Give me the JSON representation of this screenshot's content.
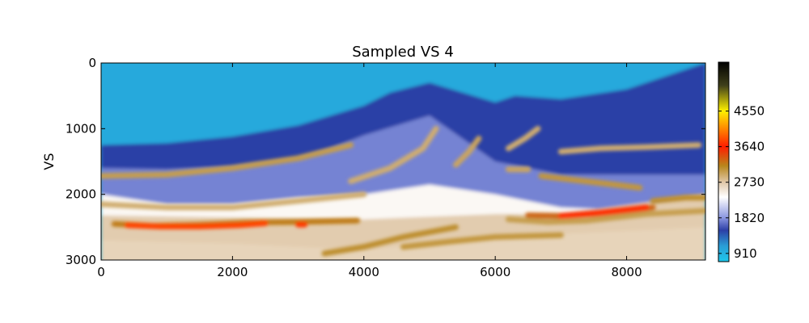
{
  "chart_data": {
    "type": "heatmap",
    "title": "Sampled VS 4",
    "xlabel": "",
    "ylabel": "VS",
    "xlim": [
      0,
      9200
    ],
    "ylim": [
      3000,
      0
    ],
    "x_ticks": [
      0,
      2000,
      4000,
      6000,
      8000
    ],
    "y_ticks": [
      0,
      1000,
      2000,
      3000
    ],
    "colorbar": {
      "range": [
        700,
        5800
      ],
      "ticks": [
        910,
        1820,
        2730,
        3640,
        4550
      ],
      "colormap": [
        {
          "value": 700,
          "color": "#1ec8ec"
        },
        {
          "value": 1100,
          "color": "#2a9ed6"
        },
        {
          "value": 1500,
          "color": "#2c3fa6"
        },
        {
          "value": 1820,
          "color": "#8a96e0"
        },
        {
          "value": 2350,
          "color": "#ffffff"
        },
        {
          "value": 2730,
          "color": "#e0c8a8"
        },
        {
          "value": 3150,
          "color": "#b8861c"
        },
        {
          "value": 3640,
          "color": "#ff1e00"
        },
        {
          "value": 4550,
          "color": "#fff000"
        },
        {
          "value": 5200,
          "color": "#40401a"
        },
        {
          "value": 5800,
          "color": "#000000"
        }
      ]
    },
    "layers": [
      {
        "x": [
          0,
          2000,
          4000,
          4400,
          5000,
          6000,
          7000,
          9200
        ],
        "y_top": [
          0,
          0,
          0,
          0,
          0,
          0,
          0,
          0
        ],
        "value": 1000
      },
      {
        "x": [
          0,
          1000,
          2000,
          3000,
          4000,
          4400,
          5000,
          6000,
          6300,
          7000,
          8000,
          9200
        ],
        "y_top": [
          1250,
          1220,
          1120,
          950,
          650,
          450,
          300,
          600,
          500,
          550,
          400,
          0
        ],
        "value": 1500
      },
      {
        "x": [
          0,
          1000,
          2000,
          3000,
          3500,
          4000,
          5000,
          6000,
          7000,
          9200
        ],
        "y_top": [
          1600,
          1620,
          1580,
          1450,
          1300,
          1100,
          800,
          1500,
          1700,
          1700
        ],
        "value": 1750
      },
      {
        "x": [
          0,
          1000,
          2000,
          3000,
          4000,
          5000,
          6000,
          7000,
          9200
        ],
        "y_top": [
          2000,
          2150,
          2150,
          2050,
          2000,
          1850,
          2000,
          2200,
          2300
        ],
        "value": 2400
      },
      {
        "x": [
          0,
          2000,
          4000,
          6000,
          7000,
          9200
        ],
        "y_top": [
          2320,
          2350,
          2380,
          2300,
          2300,
          2000
        ],
        "value": 2700
      },
      {
        "x": [
          0,
          2000,
          4000,
          6000,
          9200
        ],
        "y_top": [
          2700,
          2750,
          2850,
          2650,
          2500
        ],
        "value": 2650
      }
    ],
    "bands": [
      {
        "x": [
          0,
          1000,
          2000,
          3000,
          3800
        ],
        "y": [
          1720,
          1700,
          1600,
          1450,
          1250
        ],
        "value": 3000
      },
      {
        "x": [
          0,
          1000,
          2000,
          3000,
          4000
        ],
        "y": [
          2150,
          2200,
          2200,
          2100,
          2000
        ],
        "value": 2900
      },
      {
        "x": [
          200,
          800,
          1500,
          2200,
          3000,
          3900
        ],
        "y": [
          2450,
          2480,
          2460,
          2430,
          2420,
          2400
        ],
        "value": 3200
      },
      {
        "x": [
          400,
          900,
          1500,
          2100,
          2500
        ],
        "y": [
          2470,
          2490,
          2490,
          2470,
          2440
        ],
        "value": 3800
      },
      {
        "x": [
          3000,
          3100
        ],
        "y": [
          2460,
          2460
        ],
        "value": 3750
      },
      {
        "x": [
          3800,
          4400,
          4900,
          5100
        ],
        "y": [
          1800,
          1600,
          1300,
          1000
        ],
        "value": 2900
      },
      {
        "x": [
          5400,
          5600,
          5750
        ],
        "y": [
          1550,
          1350,
          1150
        ],
        "value": 2950
      },
      {
        "x": [
          6200,
          6450,
          6650
        ],
        "y": [
          1300,
          1150,
          1000
        ],
        "value": 2900
      },
      {
        "x": [
          6200,
          6500
        ],
        "y": [
          1620,
          1620
        ],
        "value": 2950
      },
      {
        "x": [
          6700,
          7200,
          7800,
          8200
        ],
        "y": [
          1720,
          1780,
          1850,
          1900
        ],
        "value": 3050
      },
      {
        "x": [
          7000,
          7600,
          8300,
          9100
        ],
        "y": [
          1350,
          1300,
          1280,
          1250
        ],
        "value": 2900
      },
      {
        "x": [
          6500,
          7000,
          7500,
          8000,
          8400
        ],
        "y": [
          2320,
          2330,
          2300,
          2250,
          2200
        ],
        "value": 3300
      },
      {
        "x": [
          7000,
          7600,
          8300
        ],
        "y": [
          2330,
          2280,
          2200
        ],
        "value": 3700
      },
      {
        "x": [
          8400,
          8900,
          9200
        ],
        "y": [
          2100,
          2050,
          2050
        ],
        "value": 3100
      },
      {
        "x": [
          3400,
          4000,
          4600,
          5400
        ],
        "y": [
          2900,
          2800,
          2650,
          2500
        ],
        "value": 3100
      },
      {
        "x": [
          4600,
          5300,
          6000,
          7000
        ],
        "y": [
          2800,
          2720,
          2650,
          2620
        ],
        "value": 3050
      },
      {
        "x": [
          6200,
          6800,
          7400,
          8300,
          9200
        ],
        "y": [
          2380,
          2420,
          2400,
          2300,
          2250
        ],
        "value": 3000
      }
    ]
  }
}
